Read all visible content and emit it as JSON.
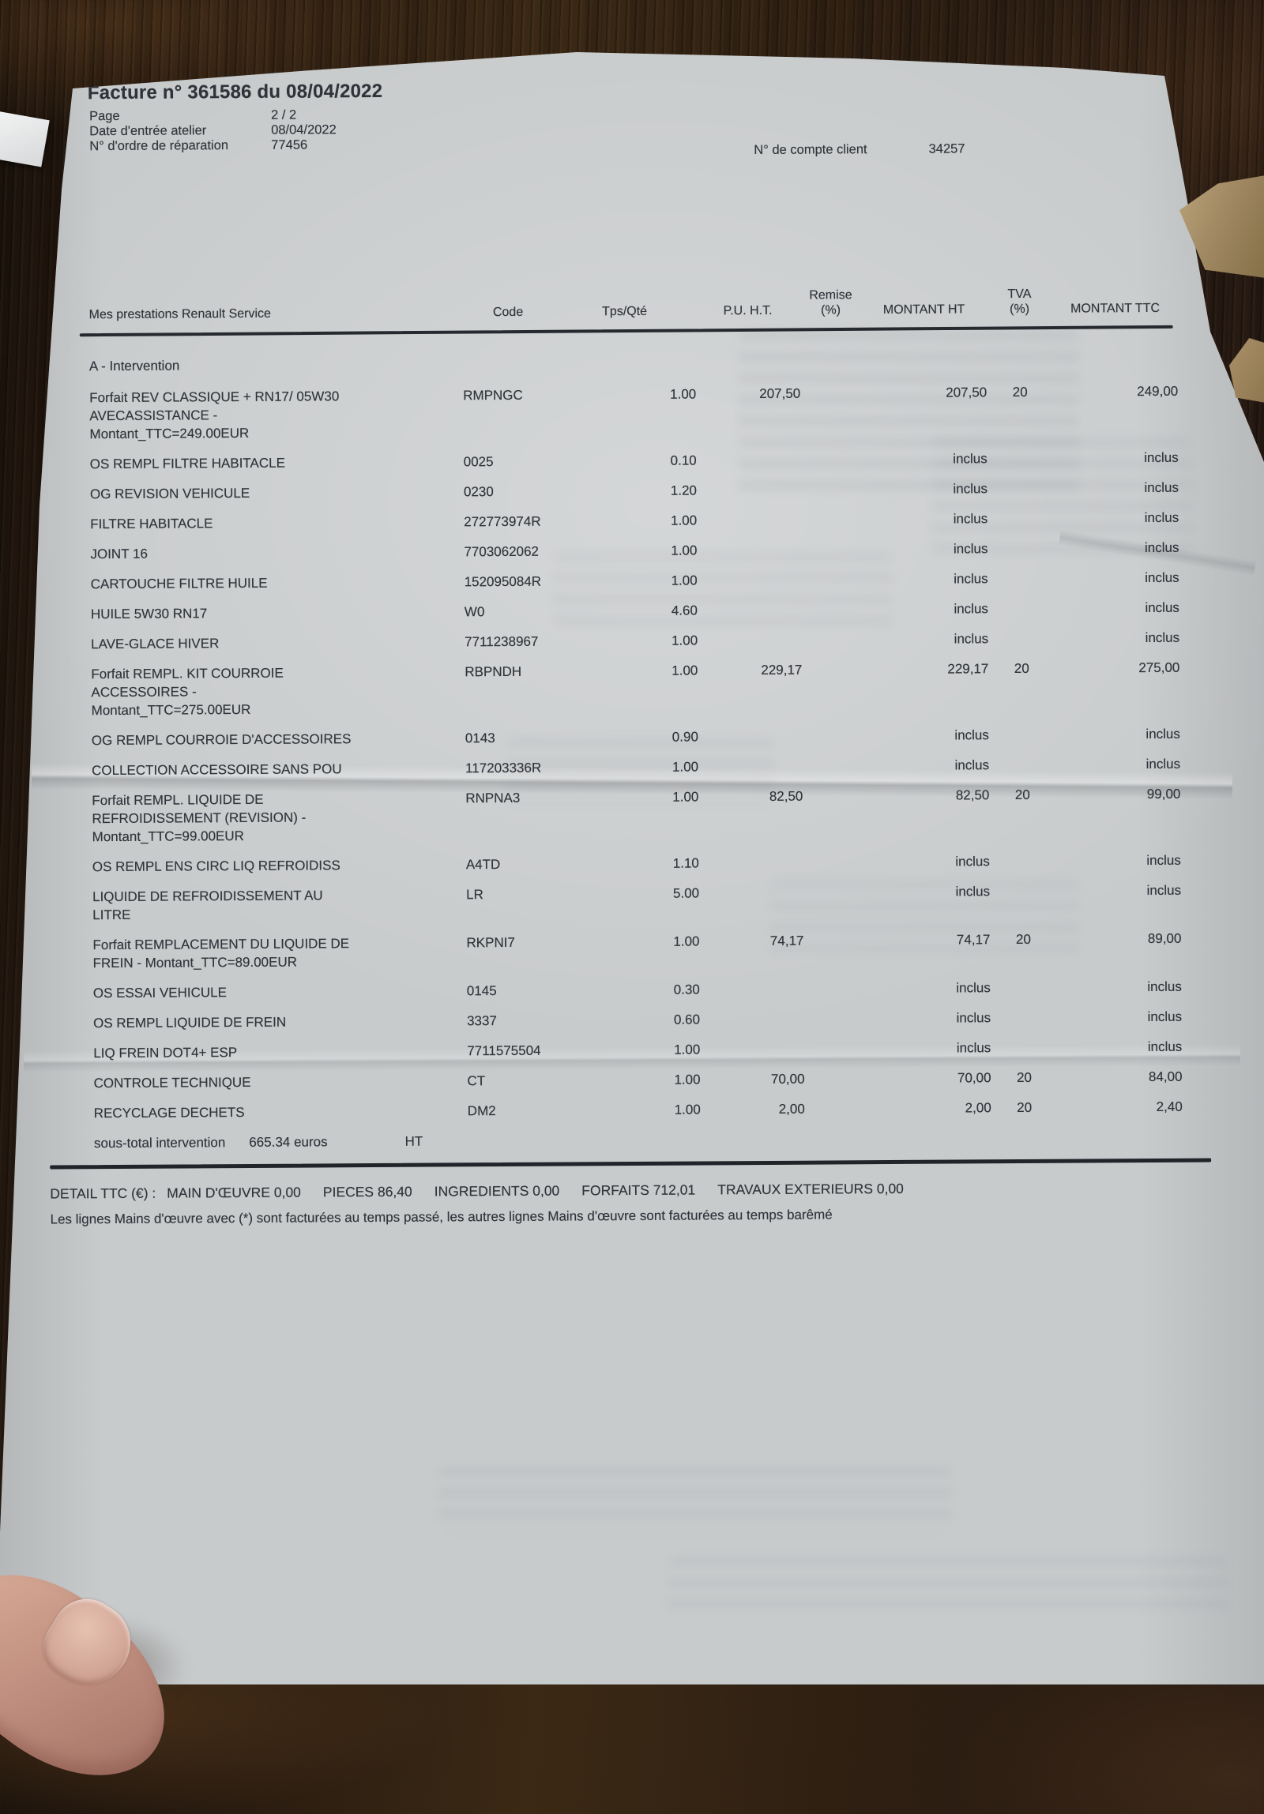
{
  "photo": {
    "paper_color": "#c8cbcc",
    "ink_color": "#30343a",
    "wood_color": "#2c1d10"
  },
  "invoice": {
    "title": "Facture n° 361586 du 08/04/2022",
    "page": {
      "label": "Page",
      "value": "2 / 2"
    },
    "meta": [
      {
        "label": "Date d'entrée atelier",
        "value": "08/04/2022"
      },
      {
        "label": "N° d'ordre de réparation",
        "value": "77456"
      }
    ],
    "account": {
      "label": "N° de compte client",
      "value": "34257"
    },
    "table": {
      "columns": {
        "designation": "Mes prestations Renault Service",
        "code": "Code",
        "qty": "Tps/Qté",
        "pu": "P.U. H.T.",
        "remise_top": "Remise",
        "remise_bottom": "(%)",
        "montant_ht": "MONTANT HT",
        "tva_top": "TVA",
        "tva_bottom": "(%)",
        "montant_ttc": "MONTANT TTC"
      },
      "section": "A - Intervention",
      "rows": [
        {
          "designation": "Forfait REV CLASSIQUE + RN17/ 05W30 AVECASSISTANCE - Montant_TTC=249.00EUR",
          "code": "RMPNGC",
          "qty": "1.00",
          "pu": "207,50",
          "montant_ht": "207,50",
          "tva": "20",
          "montant_ttc": "249,00"
        },
        {
          "designation": "OS REMPL FILTRE HABITACLE",
          "code": "0025",
          "qty": "0.10",
          "pu": "",
          "montant_ht": "inclus",
          "tva": "",
          "montant_ttc": "inclus"
        },
        {
          "designation": "OG REVISION VEHICULE",
          "code": "0230",
          "qty": "1.20",
          "pu": "",
          "montant_ht": "inclus",
          "tva": "",
          "montant_ttc": "inclus"
        },
        {
          "designation": "FILTRE HABITACLE",
          "code": "272773974R",
          "qty": "1.00",
          "pu": "",
          "montant_ht": "inclus",
          "tva": "",
          "montant_ttc": "inclus"
        },
        {
          "designation": "JOINT 16",
          "code": "7703062062",
          "qty": "1.00",
          "pu": "",
          "montant_ht": "inclus",
          "tva": "",
          "montant_ttc": "inclus"
        },
        {
          "designation": "CARTOUCHE FILTRE HUILE",
          "code": "152095084R",
          "qty": "1.00",
          "pu": "",
          "montant_ht": "inclus",
          "tva": "",
          "montant_ttc": "inclus"
        },
        {
          "designation": "HUILE 5W30 RN17",
          "code": "W0",
          "qty": "4.60",
          "pu": "",
          "montant_ht": "inclus",
          "tva": "",
          "montant_ttc": "inclus"
        },
        {
          "designation": "LAVE-GLACE HIVER",
          "code": "7711238967",
          "qty": "1.00",
          "pu": "",
          "montant_ht": "inclus",
          "tva": "",
          "montant_ttc": "inclus"
        },
        {
          "designation": "Forfait REMPL. KIT COURROIE ACCESSOIRES - Montant_TTC=275.00EUR",
          "code": "RBPNDH",
          "qty": "1.00",
          "pu": "229,17",
          "montant_ht": "229,17",
          "tva": "20",
          "montant_ttc": "275,00"
        },
        {
          "designation": "OG REMPL COURROIE D'ACCESSOIRES",
          "code": "0143",
          "qty": "0.90",
          "pu": "",
          "montant_ht": "inclus",
          "tva": "",
          "montant_ttc": "inclus"
        },
        {
          "designation": "COLLECTION ACCESSOIRE SANS POU",
          "code": "117203336R",
          "qty": "1.00",
          "pu": "",
          "montant_ht": "inclus",
          "tva": "",
          "montant_ttc": "inclus"
        },
        {
          "designation": "Forfait REMPL. LIQUIDE DE REFROIDISSEMENT (REVISION) - Montant_TTC=99.00EUR",
          "code": "RNPNA3",
          "qty": "1.00",
          "pu": "82,50",
          "montant_ht": "82,50",
          "tva": "20",
          "montant_ttc": "99,00"
        },
        {
          "designation": "OS REMPL ENS CIRC LIQ REFROIDISS",
          "code": "A4TD",
          "qty": "1.10",
          "pu": "",
          "montant_ht": "inclus",
          "tva": "",
          "montant_ttc": "inclus"
        },
        {
          "designation": "LIQUIDE DE REFROIDISSEMENT AU LITRE",
          "code": "LR",
          "qty": "5.00",
          "pu": "",
          "montant_ht": "inclus",
          "tva": "",
          "montant_ttc": "inclus"
        },
        {
          "designation": "Forfait REMPLACEMENT DU LIQUIDE DE FREIN - Montant_TTC=89.00EUR",
          "code": "RKPNI7",
          "qty": "1.00",
          "pu": "74,17",
          "montant_ht": "74,17",
          "tva": "20",
          "montant_ttc": "89,00"
        },
        {
          "designation": "OS ESSAI VEHICULE",
          "code": "0145",
          "qty": "0.30",
          "pu": "",
          "montant_ht": "inclus",
          "tva": "",
          "montant_ttc": "inclus"
        },
        {
          "designation": "OS REMPL LIQUIDE DE FREIN",
          "code": "3337",
          "qty": "0.60",
          "pu": "",
          "montant_ht": "inclus",
          "tva": "",
          "montant_ttc": "inclus"
        },
        {
          "designation": "LIQ FREIN DOT4+ ESP",
          "code": "7711575504",
          "qty": "1.00",
          "pu": "",
          "montant_ht": "inclus",
          "tva": "",
          "montant_ttc": "inclus"
        },
        {
          "designation": "CONTROLE TECHNIQUE",
          "code": "CT",
          "qty": "1.00",
          "pu": "70,00",
          "montant_ht": "70,00",
          "tva": "20",
          "montant_ttc": "84,00"
        },
        {
          "designation": "RECYCLAGE DECHETS",
          "code": "DM2",
          "qty": "1.00",
          "pu": "2,00",
          "montant_ht": "2,00",
          "tva": "20",
          "montant_ttc": "2,40"
        }
      ]
    },
    "subtotal": {
      "label": "sous-total intervention",
      "value": "665.34 euros",
      "suffix": "HT"
    },
    "totals_detail": {
      "prefix": "DETAIL TTC (€) :",
      "items": [
        {
          "label": "MAIN D'ŒUVRE",
          "value": "0,00"
        },
        {
          "label": "PIECES",
          "value": "86,40"
        },
        {
          "label": "INGREDIENTS",
          "value": "0,00"
        },
        {
          "label": "FORFAITS",
          "value": "712,01"
        },
        {
          "label": "TRAVAUX EXTERIEURS",
          "value": "0,00"
        }
      ]
    },
    "footnote": "Les lignes Mains d'œuvre avec (*) sont facturées au temps passé, les autres lignes Mains d'œuvre sont facturées au temps barêmé"
  }
}
